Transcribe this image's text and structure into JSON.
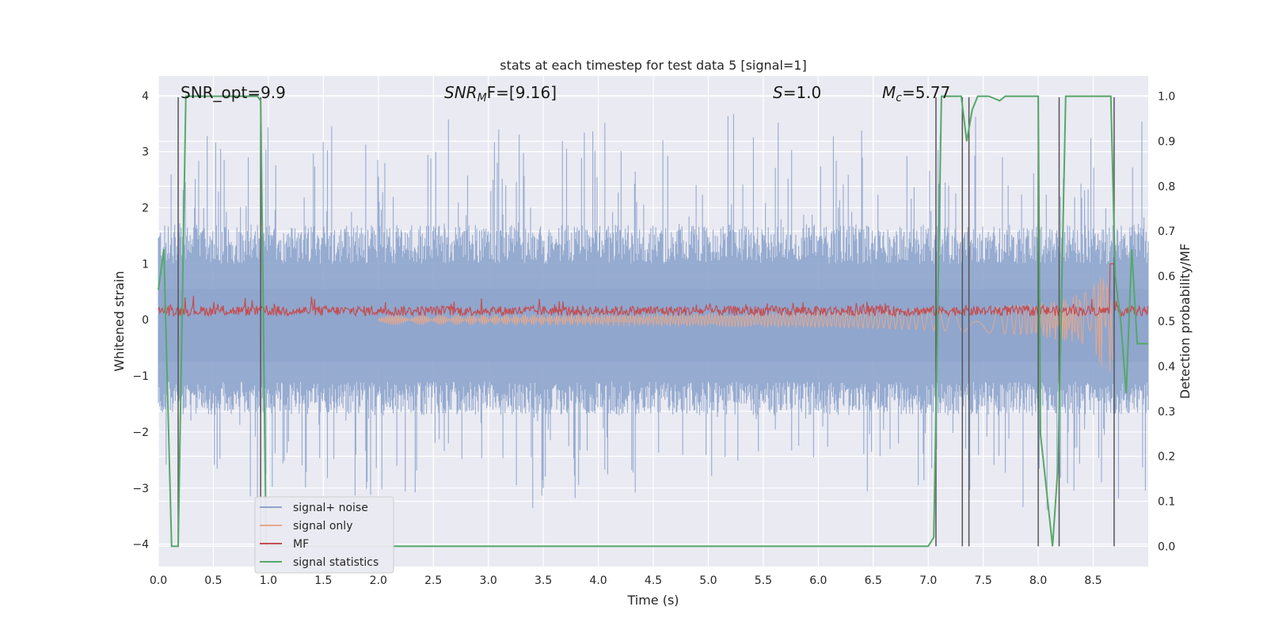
{
  "chart_data": {
    "type": "line",
    "title": "stats at each timestep for test data 5 [signal=1]",
    "xlabel": "Time (s)",
    "ylabel_left": "Whitened strain",
    "ylabel_right": "Detection probability/MF",
    "xlim": [
      0.0,
      9.0
    ],
    "ylim_left": [
      -4.4,
      4.35
    ],
    "ylim_right": [
      -0.045,
      1.045
    ],
    "x_ticks": [
      "0.0",
      "0.5",
      "1.0",
      "1.5",
      "2.0",
      "2.5",
      "3.0",
      "3.5",
      "4.0",
      "4.5",
      "5.0",
      "5.5",
      "6.0",
      "6.5",
      "7.0",
      "7.5",
      "8.0",
      "8.5"
    ],
    "x_tick_values": [
      0.0,
      0.5,
      1.0,
      1.5,
      2.0,
      2.5,
      3.0,
      3.5,
      4.0,
      4.5,
      5.0,
      5.5,
      6.0,
      6.5,
      7.0,
      7.5,
      8.0,
      8.5
    ],
    "y_ticks_left": [
      "4",
      "3",
      "2",
      "1",
      "0",
      "−1",
      "−2",
      "−3",
      "−4"
    ],
    "y_tick_values_left": [
      4,
      3,
      2,
      1,
      0,
      -1,
      -2,
      -3,
      -4
    ],
    "y_ticks_right": [
      "1.0",
      "0.9",
      "0.8",
      "0.7",
      "0.6",
      "0.5",
      "0.4",
      "0.3",
      "0.2",
      "0.1",
      "0.0"
    ],
    "y_tick_values_right": [
      1.0,
      0.9,
      0.8,
      0.7,
      0.6,
      0.5,
      0.4,
      0.3,
      0.2,
      0.1,
      0.0
    ],
    "grid": true,
    "legend_position": "lower-left",
    "annotations": {
      "snr_opt": "SNR_opt=9.9",
      "snr_mf_prefix": "SNR",
      "snr_mf_sub": "M",
      "snr_mf_suffix": "F=[9.16]",
      "s_prefix": "S",
      "s_suffix": "=1.0",
      "mc_prefix": "M",
      "mc_sub": "c",
      "mc_suffix": "=5.77"
    },
    "series": [
      {
        "name": "signal+ noise",
        "color": "#8da4cc",
        "style": "noise band, amplitude ~±1.6 with spikes to ±3.9"
      },
      {
        "name": "signal only",
        "color": "#e8a88a",
        "style": "chirp, amplitude growing to ~1.0 at merger t≈8.67"
      },
      {
        "name": "MF",
        "color": "#c44e52",
        "style": "matched filter ~0.15, peak ~1.0 at t≈8.67"
      },
      {
        "name": "signal statistics",
        "color": "#55a868",
        "x": [
          0.0,
          0.05,
          0.12,
          0.18,
          0.25,
          0.3,
          0.6,
          0.9,
          0.93,
          0.98,
          1.0,
          1.5,
          2.0,
          3.0,
          4.0,
          5.0,
          6.0,
          7.0,
          7.05,
          7.12,
          7.3,
          7.35,
          7.4,
          7.45,
          7.5,
          7.55,
          7.65,
          7.7,
          7.75,
          8.0,
          8.02,
          8.13,
          8.18,
          8.25,
          8.5,
          8.66,
          8.7,
          8.75,
          8.8,
          8.85,
          8.9,
          8.95,
          9.0
        ],
        "y": [
          0.57,
          0.66,
          0.0,
          0.0,
          1.0,
          1.0,
          1.0,
          1.0,
          0.99,
          0.0,
          0.0,
          0.0,
          0.0,
          0.0,
          0.0,
          0.0,
          0.0,
          0.0,
          0.02,
          1.0,
          1.0,
          0.9,
          0.97,
          1.0,
          1.0,
          1.0,
          0.99,
          1.0,
          1.0,
          1.0,
          0.25,
          0.0,
          0.18,
          1.0,
          1.0,
          1.0,
          0.6,
          0.5,
          0.34,
          0.66,
          0.45,
          0.45,
          0.45
        ]
      }
    ],
    "vlines": [
      0.18,
      0.93,
      7.07,
      7.31,
      7.37,
      8.0,
      8.19,
      8.69
    ]
  }
}
